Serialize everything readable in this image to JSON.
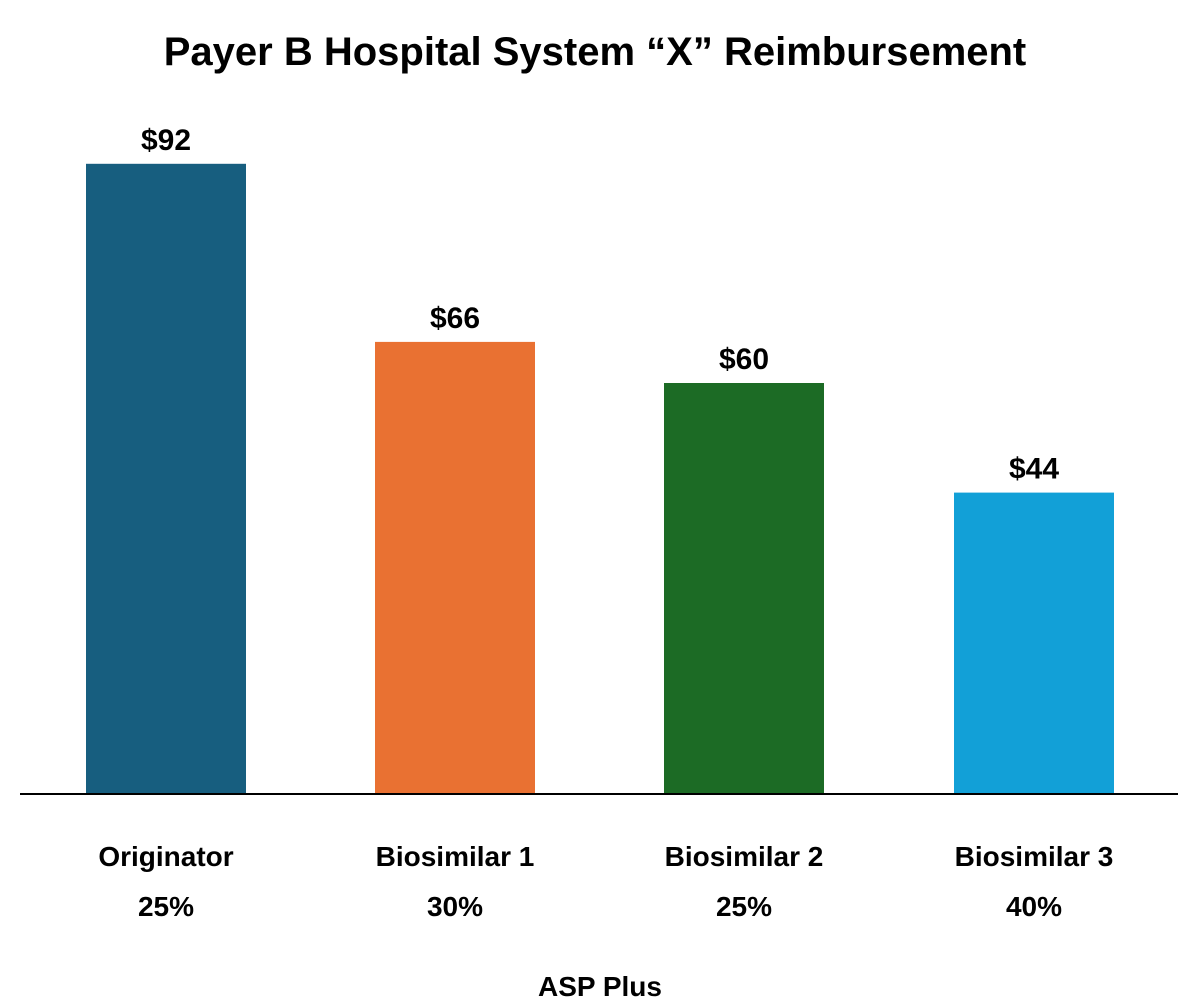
{
  "chart_data": {
    "type": "bar",
    "title": "Payer B Hospital System “X” Reimbursement",
    "xlabel": "ASP Plus",
    "ylabel": "",
    "categories": [
      "Originator",
      "Biosimilar 1",
      "Biosimilar 2",
      "Biosimilar 3"
    ],
    "category_sublabels": [
      "25%",
      "30%",
      "25%",
      "40%"
    ],
    "values": [
      92,
      66,
      60,
      44
    ],
    "value_labels": [
      "$92",
      "$66",
      "$60",
      "$44"
    ],
    "colors": [
      "#175e7f",
      "#e97132",
      "#1c6b25",
      "#12a0d7"
    ],
    "ylim": [
      0,
      100
    ],
    "grid": false,
    "legend": "none"
  }
}
